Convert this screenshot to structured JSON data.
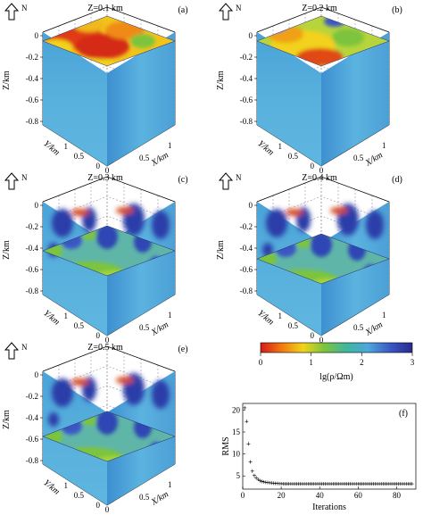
{
  "panels": [
    {
      "id": "a",
      "letter": "(a)",
      "depth": "Z=0.1 km",
      "surface": "hot"
    },
    {
      "id": "b",
      "letter": "(b)",
      "depth": "Z=0.2 km",
      "surface": "warm"
    },
    {
      "id": "c",
      "letter": "(c)",
      "depth": "Z=0.3 km",
      "surface": "green"
    },
    {
      "id": "d",
      "letter": "(d)",
      "depth": "Z=0.4 km",
      "surface": "green"
    },
    {
      "id": "e",
      "letter": "(e)",
      "depth": "Z=0.5 km",
      "surface": "green"
    }
  ],
  "axis": {
    "north": "N",
    "z_label": "Z/km",
    "y_label": "Y/km",
    "x_label": "X/km",
    "z_ticks": [
      "0",
      "-0.2",
      "-0.4",
      "-0.6",
      "-0.8"
    ],
    "y_ticks": [
      "1",
      "0.5",
      "0"
    ],
    "x_ticks": [
      "0.5",
      "1"
    ]
  },
  "colorbar": {
    "ticks": [
      "0",
      "1",
      "2",
      "3"
    ],
    "label": "lg(ρ/Ωm)",
    "colors": [
      "#d41a1a",
      "#f07a10",
      "#f2d21a",
      "#7cc43c",
      "#3fb6a0",
      "#4ea6dc",
      "#3a56c4",
      "#2a2a8a"
    ]
  },
  "rms_chart": {
    "letter": "(f)",
    "chart_data": {
      "type": "scatter",
      "xlabel": "Iterations",
      "ylabel": "RMS",
      "xlim": [
        0,
        90
      ],
      "ylim": [
        0,
        20
      ],
      "x_ticks": [
        "0",
        "20",
        "40",
        "60",
        "80"
      ],
      "y_ticks": [
        "5",
        "10",
        "15",
        "20"
      ],
      "x": [
        1,
        2,
        3,
        4,
        5,
        6,
        7,
        8,
        9,
        10,
        11,
        12,
        13,
        14,
        15,
        16,
        17,
        18,
        19,
        20,
        21,
        22,
        23,
        24,
        25,
        26,
        27,
        28,
        29,
        30,
        31,
        32,
        33,
        34,
        35,
        36,
        37,
        38,
        39,
        40,
        41,
        42,
        43,
        44,
        45,
        46,
        47,
        48,
        49,
        50,
        51,
        52,
        53,
        54,
        55,
        56,
        57,
        58,
        59,
        60,
        61,
        62,
        63,
        64,
        65,
        66,
        67,
        68,
        69,
        70,
        71,
        72,
        73,
        74,
        75,
        76,
        77,
        78,
        79,
        80,
        81,
        82,
        83,
        84,
        85,
        86,
        87,
        88
      ],
      "y": [
        20.5,
        17.4,
        12.3,
        8.2,
        6.1,
        5.1,
        4.6,
        4.2,
        3.9,
        3.75,
        3.65,
        3.55,
        3.5,
        3.45,
        3.4,
        3.35,
        3.3,
        3.3,
        3.25,
        3.25,
        3.2,
        3.2,
        3.2,
        3.2,
        3.2,
        3.2,
        3.2,
        3.2,
        3.2,
        3.2,
        3.2,
        3.2,
        3.2,
        3.2,
        3.2,
        3.2,
        3.2,
        3.2,
        3.2,
        3.2,
        3.2,
        3.2,
        3.2,
        3.2,
        3.2,
        3.2,
        3.2,
        3.2,
        3.2,
        3.2,
        3.2,
        3.2,
        3.2,
        3.2,
        3.2,
        3.2,
        3.2,
        3.2,
        3.2,
        3.2,
        3.2,
        3.2,
        3.2,
        3.2,
        3.2,
        3.2,
        3.2,
        3.2,
        3.2,
        3.2,
        3.2,
        3.2,
        3.2,
        3.2,
        3.2,
        3.2,
        3.2,
        3.2,
        3.2,
        3.2,
        3.2,
        3.2,
        3.2,
        3.2,
        3.2,
        3.2,
        3.2,
        3.2
      ]
    }
  }
}
